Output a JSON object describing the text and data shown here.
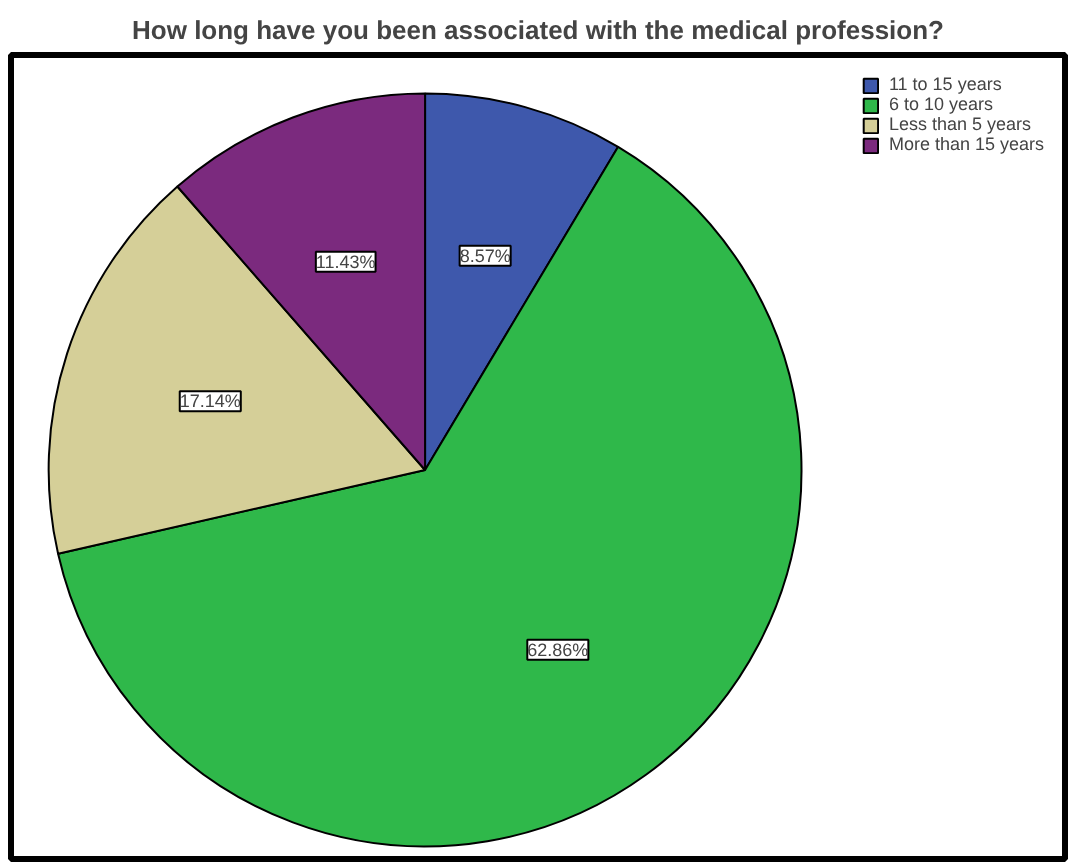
{
  "chart_data": {
    "type": "pie",
    "title": "How long have you been associated with the medical profession?",
    "categories": [
      "11 to 15 years",
      "6 to 10 years",
      "Less than 5 years",
      "More than 15 years"
    ],
    "values": [
      8.57,
      62.86,
      17.14,
      11.43
    ],
    "colors": [
      "#3e58ac",
      "#2fb84a",
      "#d5cf98",
      "#7b2a7e"
    ],
    "value_labels": [
      "8.57%",
      "62.86%",
      "17.14%",
      "11.43%"
    ],
    "legend": "top right"
  }
}
